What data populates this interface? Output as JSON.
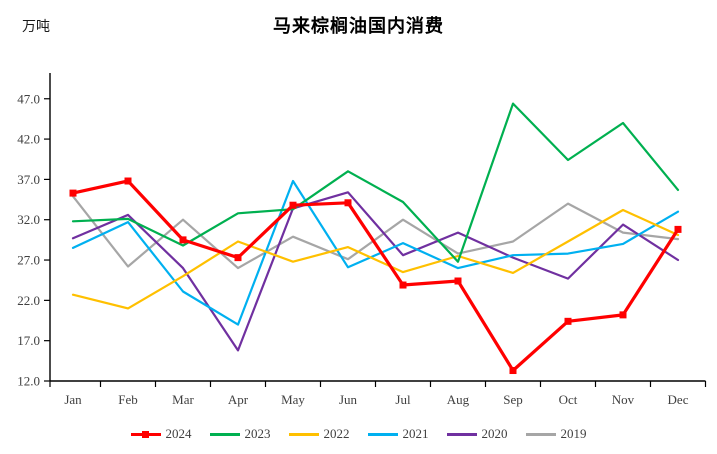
{
  "title": "马来棕榈油国内消费",
  "unit_label": "万吨",
  "chart_data": {
    "type": "line",
    "title": "马来棕榈油国内消费",
    "ylabel": "万吨",
    "xlabel": "",
    "grid": false,
    "legend_position": "bottom",
    "ylim": [
      12.0,
      50.0
    ],
    "yticks": [
      12.0,
      17.0,
      22.0,
      27.0,
      32.0,
      37.0,
      42.0,
      47.0
    ],
    "categories": [
      "Jan",
      "Feb",
      "Mar",
      "Apr",
      "May",
      "Jun",
      "Jul",
      "Aug",
      "Sep",
      "Oct",
      "Nov",
      "Dec"
    ],
    "series": [
      {
        "name": "2024",
        "color": "#ff0000",
        "marker": "square",
        "line_width": 3.2,
        "values": [
          35.3,
          36.8,
          29.5,
          27.3,
          33.8,
          34.1,
          23.9,
          24.4,
          13.3,
          19.4,
          20.2,
          30.8
        ]
      },
      {
        "name": "2023",
        "color": "#00b050",
        "marker": "none",
        "line_width": 2.2,
        "values": [
          31.8,
          32.1,
          28.8,
          32.8,
          33.3,
          38.0,
          34.2,
          26.8,
          46.4,
          39.4,
          44.0,
          35.7
        ]
      },
      {
        "name": "2022",
        "color": "#ffc000",
        "marker": "none",
        "line_width": 2.2,
        "values": [
          22.7,
          21.0,
          25.0,
          29.3,
          26.8,
          28.6,
          25.5,
          27.5,
          25.4,
          29.3,
          33.2,
          30.1
        ]
      },
      {
        "name": "2021",
        "color": "#00b0f0",
        "marker": "none",
        "line_width": 2.2,
        "values": [
          28.5,
          31.7,
          23.1,
          19.0,
          36.8,
          26.1,
          29.1,
          26.0,
          27.6,
          27.8,
          29.0,
          33.0
        ]
      },
      {
        "name": "2020",
        "color": "#7030a0",
        "marker": "none",
        "line_width": 2.2,
        "values": [
          29.7,
          32.6,
          26.0,
          15.8,
          33.4,
          35.4,
          27.6,
          30.4,
          27.3,
          24.7,
          31.4,
          27.0
        ]
      },
      {
        "name": "2019",
        "color": "#a6a6a6",
        "marker": "none",
        "line_width": 2.2,
        "values": [
          34.9,
          26.2,
          32.0,
          26.0,
          29.9,
          27.1,
          32.0,
          27.8,
          29.3,
          34.0,
          30.4,
          29.6
        ]
      }
    ]
  }
}
